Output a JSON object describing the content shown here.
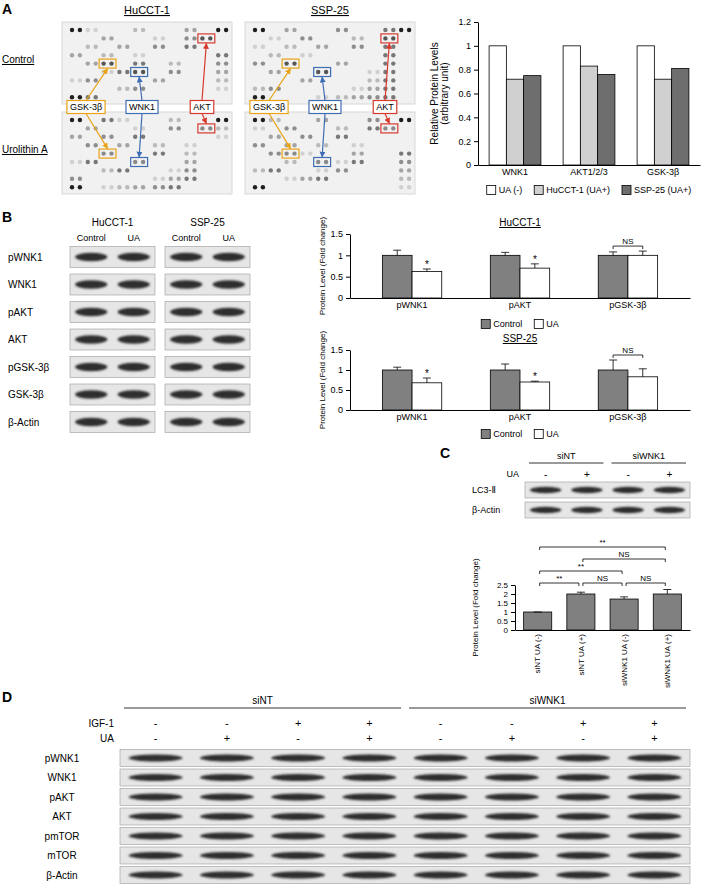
{
  "panel_labels": [
    "A",
    "B",
    "C",
    "D"
  ],
  "arrays": {
    "titles": [
      "HuCCT-1",
      "SSP-25"
    ],
    "rows": [
      "Control",
      "Urolithin A"
    ],
    "spots": [
      "GSK-3β",
      "WNK1",
      "AKT"
    ]
  },
  "blots_b": {
    "cell_lines": [
      "HuCCT-1",
      "SSP-25"
    ],
    "lanes": [
      "Control",
      "UA"
    ],
    "rows": [
      "pWNK1",
      "WNK1",
      "pAKT",
      "AKT",
      "pGSK-3β",
      "GSK-3β",
      "β-Actin"
    ]
  },
  "blots_c": {
    "groups": [
      "siNT",
      "siWNK1"
    ],
    "treatments": [
      {
        "label": "UA",
        "values": [
          "-",
          "+",
          "-",
          "+"
        ]
      }
    ],
    "rows": [
      "LC3-Ⅱ",
      "β-Actin"
    ]
  },
  "blots_d": {
    "groups": [
      "siNT",
      "siWNK1"
    ],
    "treatments": [
      {
        "label": "IGF-1",
        "values": [
          "-",
          "-",
          "+",
          "+",
          "-",
          "-",
          "+",
          "+"
        ]
      },
      {
        "label": "UA",
        "values": [
          "-",
          "+",
          "-",
          "+",
          "-",
          "+",
          "-",
          "+"
        ]
      }
    ],
    "rows": [
      "pWNK1",
      "WNK1",
      "pAKT",
      "AKT",
      "pmTOR",
      "mTOR",
      "β-Actin"
    ]
  },
  "chart_data": [
    {
      "type": "bar",
      "ylabel": [
        "Relative Protein Levels",
        "(arbitrary unit)"
      ],
      "categories": [
        "WNK1",
        "AKT1/2/3",
        "GSK-3β"
      ],
      "series": [
        {
          "name": "UA (-)",
          "color": "#ffffff",
          "values": [
            1,
            1,
            1
          ]
        },
        {
          "name": "HuCCT-1 (UA+)",
          "color": "#d0d0d0",
          "values": [
            0.72,
            0.83,
            0.72
          ]
        },
        {
          "name": "SSP-25 (UA+)",
          "color": "#6e6e6e",
          "values": [
            0.75,
            0.76,
            0.81
          ]
        }
      ],
      "ylim": [
        0,
        1.2
      ],
      "yticks": [
        0,
        0.2,
        0.4,
        0.6,
        0.8,
        1,
        1.2
      ],
      "legend": "bottom"
    },
    {
      "type": "bar",
      "title": "HuCCT-1",
      "ylabel": "Protein Level (Fold change)",
      "categories": [
        "pWNK1",
        "pAKT",
        "pGSK-3β"
      ],
      "series": [
        {
          "name": "Control",
          "color": "#808080",
          "values": [
            1,
            1,
            1
          ],
          "errors": [
            0.12,
            0.07,
            0.08
          ]
        },
        {
          "name": "UA",
          "color": "#ffffff",
          "values": [
            0.62,
            0.7,
            1.0
          ],
          "errors": [
            0.06,
            0.1,
            0.1
          ]
        }
      ],
      "ylim": [
        0,
        1.5
      ],
      "yticks": [
        0,
        0.5,
        1,
        1.5
      ],
      "significance": [
        "*",
        "*",
        "NS"
      ],
      "legend": "bottom"
    },
    {
      "type": "bar",
      "title": "SSP-25",
      "ylabel": "Protein Level (Fold change)",
      "categories": [
        "pWNK1",
        "pAKT",
        "pGSK-3β"
      ],
      "series": [
        {
          "name": "Control",
          "color": "#808080",
          "values": [
            1,
            1,
            1
          ],
          "errors": [
            0.07,
            0.15,
            0.25
          ]
        },
        {
          "name": "UA",
          "color": "#ffffff",
          "values": [
            0.68,
            0.7,
            0.83
          ],
          "errors": [
            0.12,
            0.02,
            0.2
          ]
        }
      ],
      "ylim": [
        0,
        1.5
      ],
      "yticks": [
        0,
        0.5,
        1,
        1.5
      ],
      "significance": [
        "*",
        "*",
        "NS"
      ],
      "legend": "bottom"
    },
    {
      "type": "bar",
      "ylabel": "Protein Level (Fold change)",
      "categories": [
        "siNT UA (-)",
        "siNT UA (+)",
        "siWNK1 UA (-)",
        "siWNK1 UA (+)"
      ],
      "values": [
        1,
        2.0,
        1.72,
        2.0
      ],
      "errors": [
        0,
        0.1,
        0.12,
        0.25
      ],
      "color": "#808080",
      "ylim": [
        0,
        2.5
      ],
      "yticks": [
        0,
        0.5,
        1,
        1.5,
        2,
        2.5
      ],
      "comparisons": [
        {
          "from": "siNT UA (-)",
          "to": "siNT UA (+)",
          "label": "**"
        },
        {
          "from": "siNT UA (-)",
          "to": "siWNK1 UA (-)",
          "label": "**"
        },
        {
          "from": "siNT UA (-)",
          "to": "siWNK1 UA (+)",
          "label": "**"
        },
        {
          "from": "siNT UA (+)",
          "to": "siWNK1 UA (-)",
          "label": "NS"
        },
        {
          "from": "siNT UA (+)",
          "to": "siWNK1 UA (+)",
          "label": "NS"
        },
        {
          "from": "siWNK1 UA (-)",
          "to": "siWNK1 UA (+)",
          "label": "NS"
        }
      ]
    }
  ]
}
